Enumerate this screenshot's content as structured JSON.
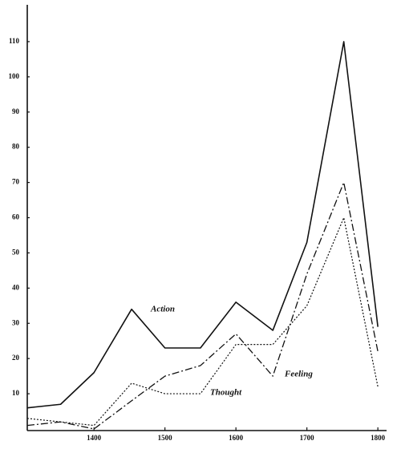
{
  "chart_data": {
    "type": "line",
    "x": [
      1306,
      1353,
      1400,
      1453,
      1500,
      1550,
      1600,
      1652,
      1700,
      1752,
      1800
    ],
    "series": [
      {
        "name": "Action",
        "color": "#111111",
        "line_style": "solid",
        "values": [
          6,
          7,
          16,
          34,
          23,
          23,
          36,
          28,
          53,
          110,
          29
        ]
      },
      {
        "name": "Feeling",
        "color": "#111111",
        "line_style": "dashdot",
        "values": [
          1,
          2,
          0,
          8,
          15,
          18,
          27,
          15,
          44,
          70,
          22
        ]
      },
      {
        "name": "Thought",
        "color": "#111111",
        "line_style": "dotted",
        "values": [
          3,
          2,
          1,
          13,
          10,
          10,
          24,
          24,
          35,
          60,
          12
        ]
      }
    ],
    "xlim": [
      1306,
      1810
    ],
    "xticks": [
      1400,
      1500,
      1600,
      1700,
      1800
    ],
    "ylim": [
      0,
      120
    ],
    "yticks": [
      10,
      20,
      30,
      40,
      50,
      60,
      70,
      80,
      90,
      100,
      110
    ],
    "grid": false
  }
}
